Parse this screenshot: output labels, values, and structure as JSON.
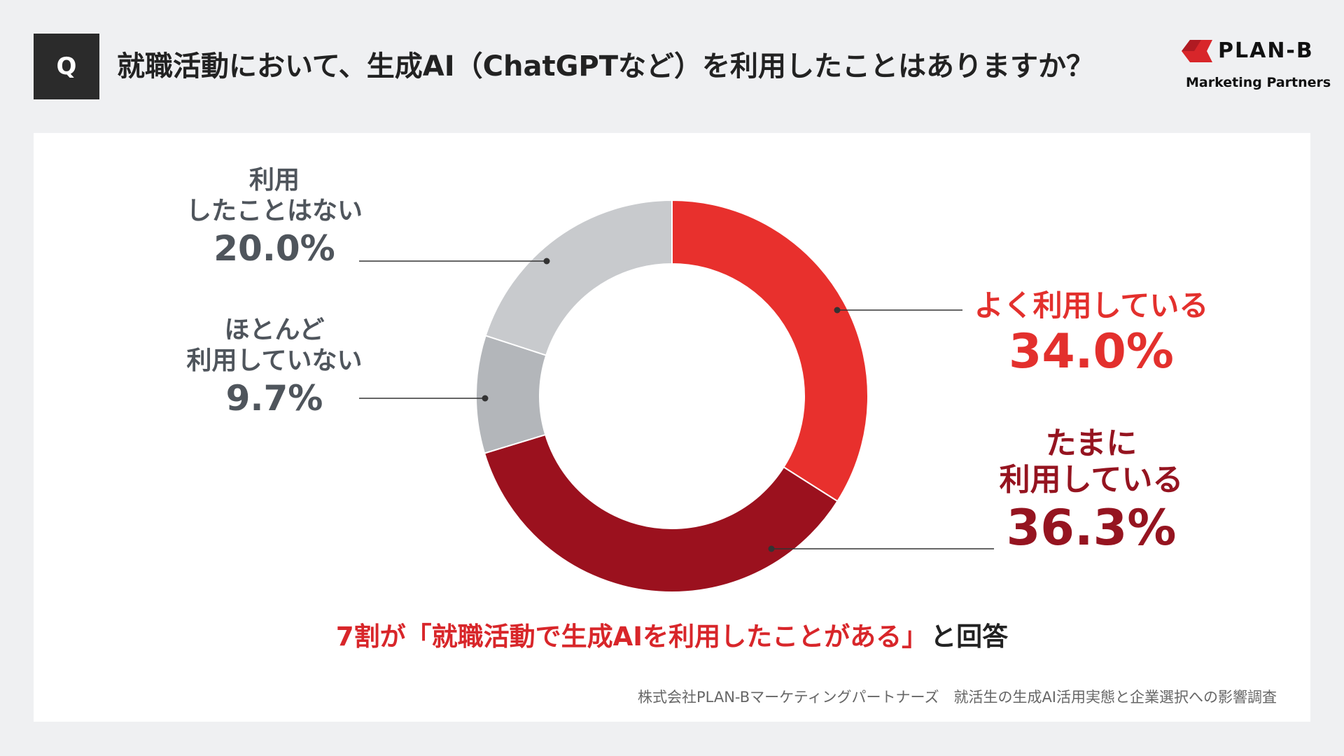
{
  "header": {
    "q_label": "Q",
    "title": "就職活動において、生成AI（ChatGPTなど）を利用したことはありますか？"
  },
  "logo": {
    "brand": "PLAN-B",
    "sub": "Marketing Partners"
  },
  "chart_data": {
    "type": "pie",
    "donut": true,
    "start": "top",
    "direction": "clockwise",
    "categories": [
      "よく利用している",
      "たまに利用している",
      "ほとんど利用していない",
      "利用したことはない"
    ],
    "values": [
      34.0,
      36.3,
      9.7,
      20.0
    ],
    "unit": "%",
    "colors": [
      "#e8302d",
      "#9b111e",
      "#b3b6ba",
      "#c8cacd"
    ],
    "labels": [
      {
        "lines": [
          "よく利用している"
        ],
        "value": "34.0%",
        "color": "#e3302d"
      },
      {
        "lines": [
          "たまに",
          "利用している"
        ],
        "value": "36.3%",
        "color": "#951420"
      },
      {
        "lines": [
          "ほとんど",
          "利用していない"
        ],
        "value": "9.7%",
        "color": "#4f555c"
      },
      {
        "lines": [
          "利用",
          "したことはない"
        ],
        "value": "20.0%",
        "color": "#4f555c"
      }
    ]
  },
  "conclusion": {
    "highlight": "7割が「就職活動で生成AIを利用したことがある」",
    "rest": "と回答"
  },
  "source": "株式会社PLAN-Bマーケティングパートナーズ　就活生の生成AI活用実態と企業選択への影響調査"
}
